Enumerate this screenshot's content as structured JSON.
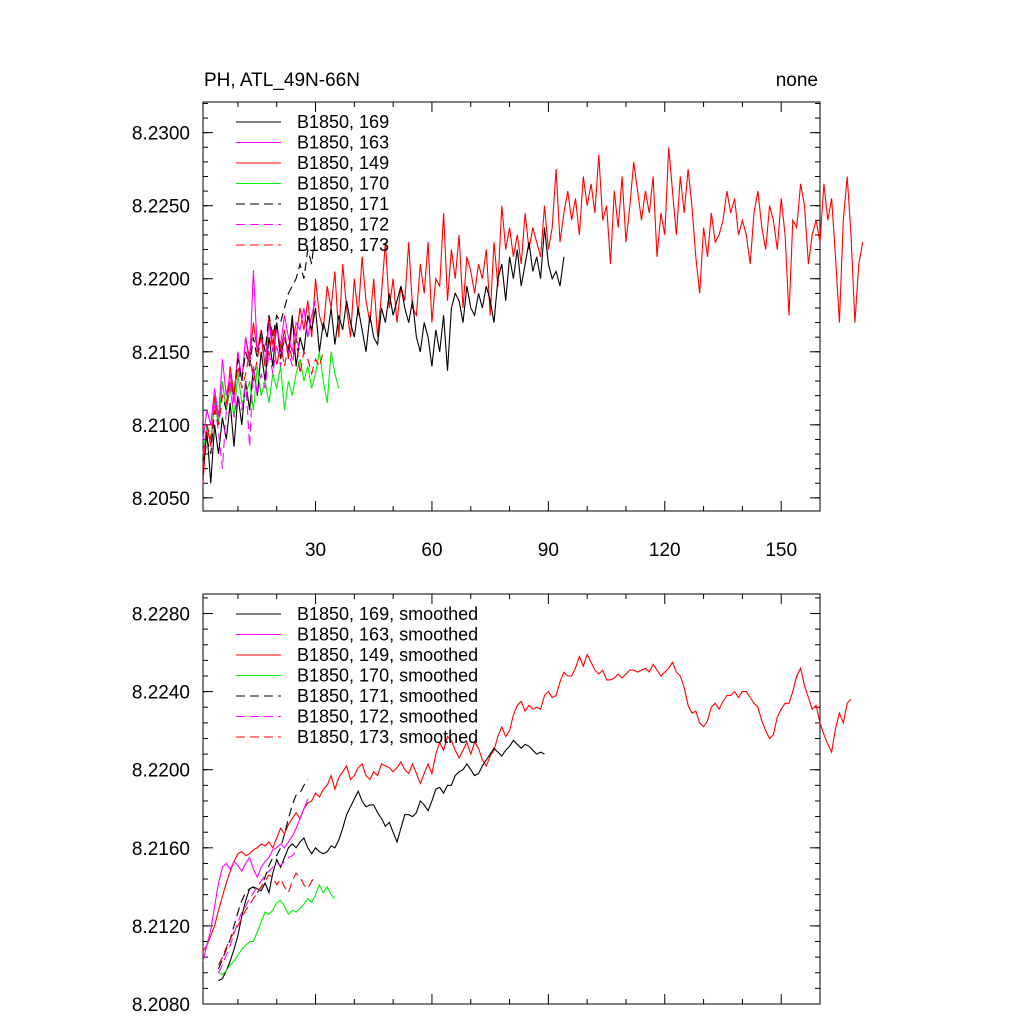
{
  "figure": {
    "title_left": "PH, ATL_49N-66N",
    "title_right": "none"
  },
  "chart_data": [
    {
      "type": "line",
      "title": "PH, ATL_49N-66N",
      "title_right": "none",
      "xlim": [
        1,
        160
      ],
      "ylim": [
        8.2041,
        8.2321
      ],
      "x_ticks": [
        30,
        60,
        90,
        120,
        150
      ],
      "x_tick_labels": [
        "30",
        "60",
        "90",
        "120",
        "150"
      ],
      "y_ticks": [
        8.205,
        8.21,
        8.215,
        8.22,
        8.225,
        8.23
      ],
      "y_tick_labels": [
        "8.2050",
        "8.2100",
        "8.2150",
        "8.2200",
        "8.2250",
        "8.2300"
      ],
      "legend_position": "top-left",
      "series": [
        {
          "name": "B1850, 169",
          "color": "#000000",
          "dash": "solid",
          "x_start": 1,
          "values": [
            8.207,
            8.2095,
            8.206,
            8.21,
            8.208,
            8.2105,
            8.209,
            8.2115,
            8.2085,
            8.212,
            8.21,
            8.213,
            8.211,
            8.214,
            8.212,
            8.215,
            8.213,
            8.216,
            8.214,
            8.217,
            8.2145,
            8.216,
            8.215,
            8.2175,
            8.214,
            8.216,
            8.215,
            8.2175,
            8.2165,
            8.218,
            8.215,
            8.217,
            8.216,
            8.218,
            8.2155,
            8.2175,
            8.2165,
            8.2185,
            8.217,
            8.216,
            8.218,
            8.2165,
            8.215,
            8.2175,
            8.216,
            8.2155,
            8.218,
            8.217,
            8.219,
            8.2175,
            8.2185,
            8.2195,
            8.218,
            8.217,
            8.2185,
            8.216,
            8.215,
            8.217,
            8.216,
            8.214,
            8.2165,
            8.215,
            8.2175,
            8.2137,
            8.218,
            8.219,
            8.2185,
            8.217,
            8.2195,
            8.218,
            8.2175,
            8.219,
            8.218,
            8.2195,
            8.2185,
            8.217,
            8.22,
            8.221,
            8.2185,
            8.2215,
            8.22,
            8.222,
            8.2195,
            8.221,
            8.2225,
            8.2205,
            8.2215,
            8.22,
            8.2235,
            8.221,
            8.22,
            8.2205,
            8.2195,
            8.2215
          ]
        },
        {
          "name": "B1850, 163",
          "color": "#ff00ff",
          "dash": "solid",
          "x_start": 1,
          "values": [
            8.209,
            8.211,
            8.21,
            8.2125,
            8.2105,
            8.2145,
            8.212,
            8.2135,
            8.2115,
            8.215,
            8.213,
            8.216,
            8.214,
            8.2206,
            8.215,
            8.216,
            8.214,
            8.217,
            8.215,
            8.2165,
            8.2155,
            8.2175,
            8.216,
            8.215,
            8.217,
            8.2165,
            8.218,
            8.216,
            8.2175,
            8.2185
          ]
        },
        {
          "name": "B1850, 149",
          "color": "#ff0000",
          "dash": "solid",
          "x_start": 1,
          "values": [
            8.206,
            8.21,
            8.2085,
            8.212,
            8.21,
            8.213,
            8.211,
            8.214,
            8.212,
            8.215,
            8.213,
            8.216,
            8.2145,
            8.217,
            8.215,
            8.2165,
            8.214,
            8.2175,
            8.2155,
            8.217,
            8.215,
            8.2165,
            8.2145,
            8.217,
            8.216,
            8.218,
            8.2165,
            8.2185,
            8.216,
            8.22,
            8.2175,
            8.2165,
            8.2195,
            8.218,
            8.2205,
            8.216,
            8.221,
            8.218,
            8.216,
            8.22,
            8.2175,
            8.2215,
            8.2185,
            8.217,
            8.22,
            8.216,
            8.219,
            8.2225,
            8.218,
            8.22,
            8.217,
            8.2195,
            8.2185,
            8.2225,
            8.218,
            8.2175,
            8.221,
            8.219,
            8.2225,
            8.217,
            8.22,
            8.2195,
            8.2245,
            8.2185,
            8.222,
            8.22,
            8.223,
            8.218,
            8.2215,
            8.2205,
            8.219,
            8.221,
            8.22,
            8.222,
            8.2175,
            8.2225,
            8.2195,
            8.225,
            8.222,
            8.2235,
            8.2215,
            8.223,
            8.221,
            8.2245,
            8.222,
            8.2235,
            8.2225,
            8.2215,
            8.225,
            8.222,
            8.2235,
            8.2275,
            8.2225,
            8.2245,
            8.226,
            8.224,
            8.2255,
            8.223,
            8.227,
            8.225,
            8.2265,
            8.2245,
            8.2285,
            8.224,
            8.225,
            8.221,
            8.226,
            8.2235,
            8.227,
            8.2225,
            8.225,
            8.228,
            8.226,
            8.224,
            8.226,
            8.2245,
            8.227,
            8.2215,
            8.2245,
            8.223,
            8.229,
            8.226,
            8.223,
            8.227,
            8.2245,
            8.2275,
            8.225,
            8.2215,
            8.219,
            8.2235,
            8.2215,
            8.2245,
            8.2225,
            8.223,
            8.224,
            8.226,
            8.2245,
            8.2255,
            8.223,
            8.224,
            8.223,
            8.221,
            8.2245,
            8.226,
            8.2235,
            8.222,
            8.225,
            8.224,
            8.222,
            8.2255,
            8.223,
            8.2175,
            8.224,
            8.2235,
            8.2265,
            8.225,
            8.221,
            8.223,
            8.224,
            8.2225,
            8.2265,
            8.224,
            8.2255,
            8.2215,
            8.217,
            8.224,
            8.227,
            8.223,
            8.217,
            8.221,
            8.2225
          ]
        },
        {
          "name": "B1850, 170",
          "color": "#00ee00",
          "dash": "solid",
          "x_start": 1,
          "values": [
            8.208,
            8.21,
            8.209,
            8.2115,
            8.21,
            8.213,
            8.211,
            8.2125,
            8.2105,
            8.2135,
            8.2115,
            8.212,
            8.213,
            8.211,
            8.214,
            8.212,
            8.213,
            8.2115,
            8.2135,
            8.2125,
            8.214,
            8.211,
            8.213,
            8.212,
            8.2135,
            8.2145,
            8.213,
            8.214,
            8.2125,
            8.2135,
            8.215,
            8.213,
            8.2115,
            8.215,
            8.2135,
            8.2125
          ]
        },
        {
          "name": "B1850, 171",
          "color": "#000000",
          "dash": "dashed",
          "x_start": 1,
          "values": [
            8.207,
            8.209,
            8.208,
            8.211,
            8.21,
            8.212,
            8.211,
            8.213,
            8.212,
            8.2145,
            8.213,
            8.215,
            8.214,
            8.216,
            8.2145,
            8.2165,
            8.215,
            8.2175,
            8.216,
            8.2175,
            8.217,
            8.218,
            8.219,
            8.2195,
            8.22,
            8.221,
            8.22,
            8.222,
            8.221,
            8.2235
          ]
        },
        {
          "name": "B1850, 172",
          "color": "#ff00ff",
          "dash": "dashed",
          "x_start": 1,
          "values": [
            8.208,
            8.21,
            8.209,
            8.2115,
            8.2095,
            8.207,
            8.211,
            8.213,
            8.2105,
            8.212,
            8.211,
            8.213,
            8.2085,
            8.214,
            8.212,
            8.2135,
            8.2125,
            8.215,
            8.2135,
            8.2155,
            8.214,
            8.216,
            8.215,
            8.214,
            8.216,
            8.215
          ]
        },
        {
          "name": "B1850, 173",
          "color": "#ff0000",
          "dash": "dashed",
          "x_start": 1,
          "values": [
            8.207,
            8.21,
            8.209,
            8.211,
            8.21,
            8.212,
            8.2115,
            8.213,
            8.212,
            8.214,
            8.2125,
            8.2135,
            8.215,
            8.213,
            8.2145,
            8.216,
            8.214,
            8.215,
            8.2165,
            8.214,
            8.2155,
            8.214,
            8.2155,
            8.2145,
            8.216,
            8.2135,
            8.215,
            8.2145,
            8.2135,
            8.2145,
            8.214,
            8.215
          ]
        }
      ]
    },
    {
      "type": "line",
      "xlim": [
        1,
        160
      ],
      "ylim": [
        8.208,
        8.229
      ],
      "x_ticks": [
        30,
        60,
        90,
        120,
        150
      ],
      "x_tick_labels": [],
      "y_ticks": [
        8.208,
        8.212,
        8.216,
        8.22,
        8.224,
        8.228
      ],
      "y_tick_labels": [
        "8.2080",
        "8.2120",
        "8.2160",
        "8.2200",
        "8.2240",
        "8.2280"
      ],
      "legend_position": "top-left",
      "series": [
        {
          "name": "B1850, 169, smoothed",
          "color": "#000000",
          "dash": "solid",
          "x_start": 5,
          "values": [
            8.2092,
            8.2093,
            8.2097,
            8.2102,
            8.2108,
            8.2115,
            8.2125,
            8.2133,
            8.2139,
            8.214,
            8.2139,
            8.2138,
            8.2142,
            8.2137,
            8.2147,
            8.2154,
            8.215,
            8.2155,
            8.216,
            8.2162,
            8.216,
            8.2163,
            8.2165,
            8.216,
            8.2157,
            8.216,
            8.2158,
            8.2157,
            8.2158,
            8.2161,
            8.216,
            8.2164,
            8.217,
            8.2177,
            8.2181,
            8.2185,
            8.2189,
            8.2184,
            8.2181,
            8.2182,
            8.2182,
            8.2178,
            8.2175,
            8.2171,
            8.2173,
            8.2168,
            8.2163,
            8.217,
            8.2177,
            8.2177,
            8.2176,
            8.2178,
            8.2184,
            8.2182,
            8.2179,
            8.2184,
            8.219,
            8.2191,
            8.2188,
            8.2192,
            8.2192,
            8.2197,
            8.2199,
            8.22,
            8.2203,
            8.22,
            8.2197,
            8.2198,
            8.2202,
            8.2205,
            8.2208,
            8.2211,
            8.2209,
            8.2207,
            8.221,
            8.2212,
            8.2215,
            8.2213,
            8.2211,
            8.2213,
            8.2212,
            8.221,
            8.2208,
            8.2209,
            8.2208
          ]
        },
        {
          "name": "B1850, 163, smoothed",
          "color": "#ff00ff",
          "dash": "solid",
          "x_start": 1,
          "values": [
            8.2102,
            8.211,
            8.2118,
            8.213,
            8.2142,
            8.215,
            8.2152,
            8.2149,
            8.2153,
            8.2151,
            8.2148,
            8.2152,
            8.2155,
            8.2149,
            8.2145,
            8.215,
            8.2153,
            8.2155,
            8.2159,
            8.216,
            8.2162,
            8.216,
            8.2163,
            8.2166,
            8.217,
            8.2175,
            8.218,
            8.2185
          ]
        },
        {
          "name": "B1850, 149, smoothed",
          "color": "#ff0000",
          "dash": "solid",
          "x_start": 1,
          "values": [
            8.2107,
            8.211,
            8.2115,
            8.212,
            8.2128,
            8.2135,
            8.2142,
            8.2148,
            8.2153,
            8.2157,
            8.2158,
            8.2156,
            8.2157,
            8.2159,
            8.216,
            8.2162,
            8.2161,
            8.2163,
            8.216,
            8.2165,
            8.217,
            8.2167,
            8.2172,
            8.2175,
            8.2178,
            8.2175,
            8.218,
            8.2183,
            8.2184,
            8.2188,
            8.2186,
            8.219,
            8.2192,
            8.2197,
            8.219,
            8.2196,
            8.2199,
            8.2202,
            8.2195,
            8.2197,
            8.2201,
            8.2203,
            8.2197,
            8.2195,
            8.2199,
            8.2197,
            8.2203,
            8.2202,
            8.2201,
            8.2199,
            8.2201,
            8.2204,
            8.22,
            8.2198,
            8.2203,
            8.2198,
            8.2193,
            8.2198,
            8.2203,
            8.2198,
            8.2208,
            8.2214,
            8.221,
            8.2217,
            8.2215,
            8.221,
            8.2206,
            8.221,
            8.2214,
            8.2208,
            8.2214,
            8.2211,
            8.2205,
            8.2202,
            8.2207,
            8.221,
            8.2217,
            8.2222,
            8.2217,
            8.222,
            8.2228,
            8.2233,
            8.2235,
            8.223,
            8.2233,
            8.2231,
            8.2232,
            8.2231,
            8.2238,
            8.224,
            8.2237,
            8.2238,
            8.2245,
            8.225,
            8.2248,
            8.2248,
            8.2252,
            8.2258,
            8.2253,
            8.2259,
            8.2255,
            8.2251,
            8.2249,
            8.2251,
            8.2246,
            8.2246,
            8.2247,
            8.2249,
            8.2247,
            8.2249,
            8.2251,
            8.2251,
            8.225,
            8.2251,
            8.2252,
            8.225,
            8.2254,
            8.2251,
            8.2248,
            8.225,
            8.2252,
            8.2255,
            8.225,
            8.2248,
            8.2242,
            8.2233,
            8.2229,
            8.223,
            8.2224,
            8.2222,
            8.2225,
            8.2232,
            8.2234,
            8.2231,
            8.2235,
            8.2238,
            8.2238,
            8.224,
            8.2237,
            8.224,
            8.224,
            8.2237,
            8.2234,
            8.2232,
            8.2225,
            8.222,
            8.2216,
            8.2218,
            8.2227,
            8.2231,
            8.2234,
            8.2234,
            8.224,
            8.2248,
            8.2252,
            8.2243,
            8.2237,
            8.2231,
            8.2233,
            8.2224,
            8.2218,
            8.2213,
            8.2209,
            8.2221,
            8.2229,
            8.2224,
            8.2234,
            8.2236
          ]
        },
        {
          "name": "B1850, 170, smoothed",
          "color": "#00ee00",
          "dash": "solid",
          "x_start": 5,
          "values": [
            8.2096,
            8.2095,
            8.2097,
            8.21,
            8.2102,
            8.2105,
            8.2108,
            8.211,
            8.2112,
            8.2112,
            8.2117,
            8.2122,
            8.2127,
            8.2126,
            8.2128,
            8.2132,
            8.2133,
            8.213,
            8.2126,
            8.2128,
            8.2127,
            8.2129,
            8.2131,
            8.2134,
            8.2132,
            8.2136,
            8.2141,
            8.2137,
            8.214,
            8.2136,
            8.2134
          ]
        },
        {
          "name": "B1850, 171, smoothed",
          "color": "#000000",
          "dash": "dashed",
          "x_start": 5,
          "values": [
            8.2098,
            8.2103,
            8.2108,
            8.2113,
            8.212,
            8.2127,
            8.2133,
            8.2137,
            8.2139,
            8.214,
            8.2137,
            8.214,
            8.2145,
            8.2151,
            8.2155,
            8.2156,
            8.216,
            8.2167,
            8.2175,
            8.2182,
            8.2187,
            8.2188,
            8.2192,
            8.2195
          ]
        },
        {
          "name": "B1850, 172, smoothed",
          "color": "#ff00ff",
          "dash": "dashed",
          "x_start": 5,
          "values": [
            8.2096,
            8.21,
            8.2105,
            8.211,
            8.2116,
            8.2122,
            8.2127,
            8.213,
            8.2134,
            8.2137,
            8.214,
            8.2143,
            8.2146,
            8.2148,
            8.215,
            8.2152,
            8.2151,
            8.2153,
            8.2155,
            8.2156,
            8.2158
          ]
        },
        {
          "name": "B1850, 173, smoothed",
          "color": "#ff0000",
          "dash": "dashed",
          "x_start": 5,
          "values": [
            8.21,
            8.2104,
            8.2109,
            8.2113,
            8.2117,
            8.212,
            8.2124,
            8.2128,
            8.2131,
            8.2134,
            8.2137,
            8.214,
            8.2143,
            8.2146,
            8.2145,
            8.2141,
            8.2144,
            8.214,
            8.2137,
            8.2143,
            8.2147,
            8.2145,
            8.2141,
            8.2139,
            8.2143,
            8.2145
          ]
        }
      ]
    }
  ]
}
